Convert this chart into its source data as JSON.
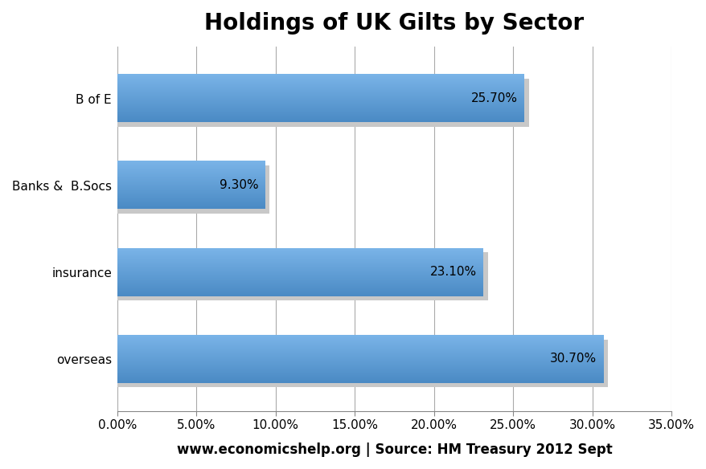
{
  "title": "Holdings of UK Gilts by Sector",
  "categories": [
    "overseas",
    "insurance",
    "Banks &  B.Socs",
    "B of E"
  ],
  "values": [
    0.307,
    0.231,
    0.093,
    0.257
  ],
  "labels": [
    "30.70%",
    "23.10%",
    "9.30%",
    "25.70%"
  ],
  "bar_color_top": "#7ab4e8",
  "bar_color_mid": "#5b9bd5",
  "bar_color_bottom": "#4a8ac4",
  "shadow_color": "#c8c8c8",
  "xlim": [
    0,
    0.35
  ],
  "xticks": [
    0.0,
    0.05,
    0.1,
    0.15,
    0.2,
    0.25,
    0.3,
    0.35
  ],
  "xtick_labels": [
    "0.00%",
    "5.00%",
    "10.00%",
    "15.00%",
    "20.00%",
    "25.00%",
    "30.00%",
    "35.00%"
  ],
  "xlabel": "www.economicshelp.org | Source: HM Treasury 2012 Sept",
  "title_fontsize": 20,
  "label_fontsize": 11,
  "tick_fontsize": 11,
  "xlabel_fontsize": 12,
  "background_color": "#ffffff",
  "grid_color": "#aaaaaa",
  "bar_height": 0.55,
  "bar_gap": 1.0
}
